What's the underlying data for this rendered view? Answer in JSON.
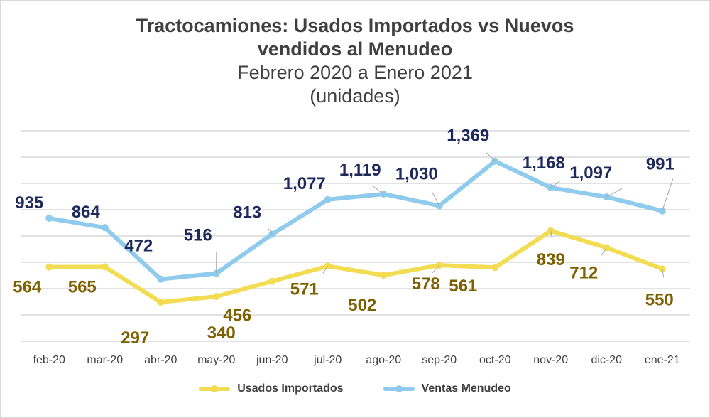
{
  "chart_data": {
    "type": "line",
    "title": "Tractocamiones: Usados Importados  vs Nuevos",
    "title_line2": "vendidos al Menudeo",
    "subtitle": "Febrero 2020 a Enero 2021",
    "units": "(unidades)",
    "categories": [
      "feb-20",
      "mar-20",
      "abr-20",
      "may-20",
      "jun-20",
      "jul-20",
      "ago-20",
      "sep-20",
      "oct-20",
      "nov-20",
      "dic-20",
      "ene-21"
    ],
    "ylim": [
      0,
      1600
    ],
    "grid": true,
    "legend_position": "bottom",
    "series": [
      {
        "name": "Usados Importados",
        "color": "#f2dc52",
        "label_color": "#7f6000",
        "values": [
          564,
          565,
          297,
          340,
          456,
          571,
          502,
          578,
          561,
          839,
          712,
          550
        ],
        "labels": [
          "564",
          "565",
          "297",
          "340",
          "456",
          "571",
          "502",
          "578",
          "561",
          "839",
          "712",
          "550"
        ]
      },
      {
        "name": "Ventas Menudeo",
        "color": "#8ecbec",
        "label_color": "#1f2a5c",
        "values": [
          935,
          864,
          472,
          516,
          813,
          1077,
          1119,
          1030,
          1369,
          1168,
          1097,
          991
        ],
        "labels": [
          "935",
          "864",
          "472",
          "516",
          "813",
          "1,077",
          "1,119",
          "1,030",
          "1,369",
          "1,168",
          "1,097",
          "991"
        ]
      }
    ]
  }
}
